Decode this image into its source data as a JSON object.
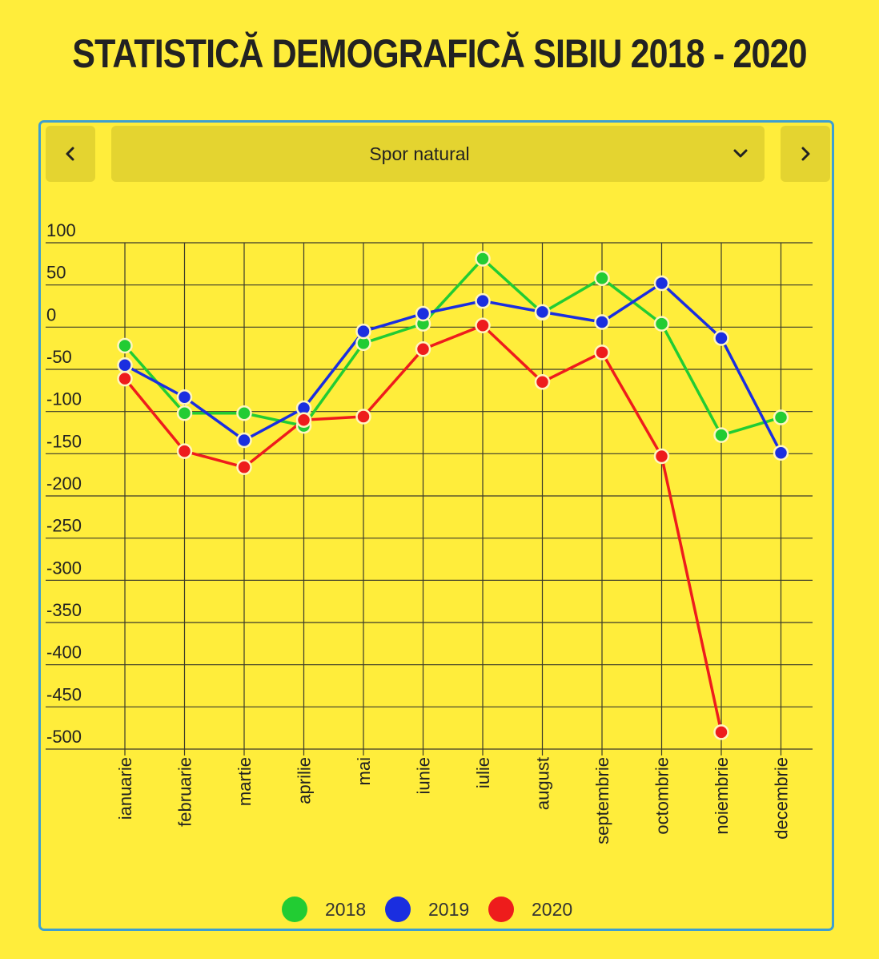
{
  "page": {
    "title": "STATISTICĂ DEMOGRAFICĂ SIBIU 2018 - 2020",
    "selector": {
      "label": "Spor natural",
      "prev_icon": "chevron-left-icon",
      "next_icon": "chevron-right-icon",
      "dropdown_icon": "chevron-down-icon"
    },
    "colors": {
      "background": "#FFED3B",
      "panel_border": "#3D9FD1",
      "control_bg": "#E4D430"
    }
  },
  "chart_data": {
    "type": "line",
    "title": "",
    "xlabel": "",
    "ylabel": "",
    "ylim": [
      -500,
      100
    ],
    "yticks": [
      100,
      50,
      0,
      -50,
      -100,
      -150,
      -200,
      -250,
      -300,
      -350,
      -400,
      -450,
      -500
    ],
    "grid": true,
    "legend_position": "bottom",
    "categories": [
      "ianuarie",
      "februarie",
      "martie",
      "aprilie",
      "mai",
      "iunie",
      "iulie",
      "august",
      "septembrie",
      "octombrie",
      "noiembrie",
      "decembrie"
    ],
    "series": [
      {
        "name": "2018",
        "color": "#22CC33",
        "values": [
          -22,
          -102,
          -102,
          -117,
          -19,
          4,
          81,
          17,
          58,
          4,
          -128,
          -107
        ]
      },
      {
        "name": "2019",
        "color": "#1A2EE0",
        "values": [
          -45,
          -83,
          -134,
          -96,
          -5,
          16,
          31,
          18,
          6,
          52,
          -13,
          -149
        ]
      },
      {
        "name": "2020",
        "color": "#EE1C1C",
        "values": [
          -61,
          -147,
          -166,
          -110,
          -106,
          -26,
          2,
          -65,
          -30,
          -153,
          -480,
          null
        ]
      }
    ]
  }
}
